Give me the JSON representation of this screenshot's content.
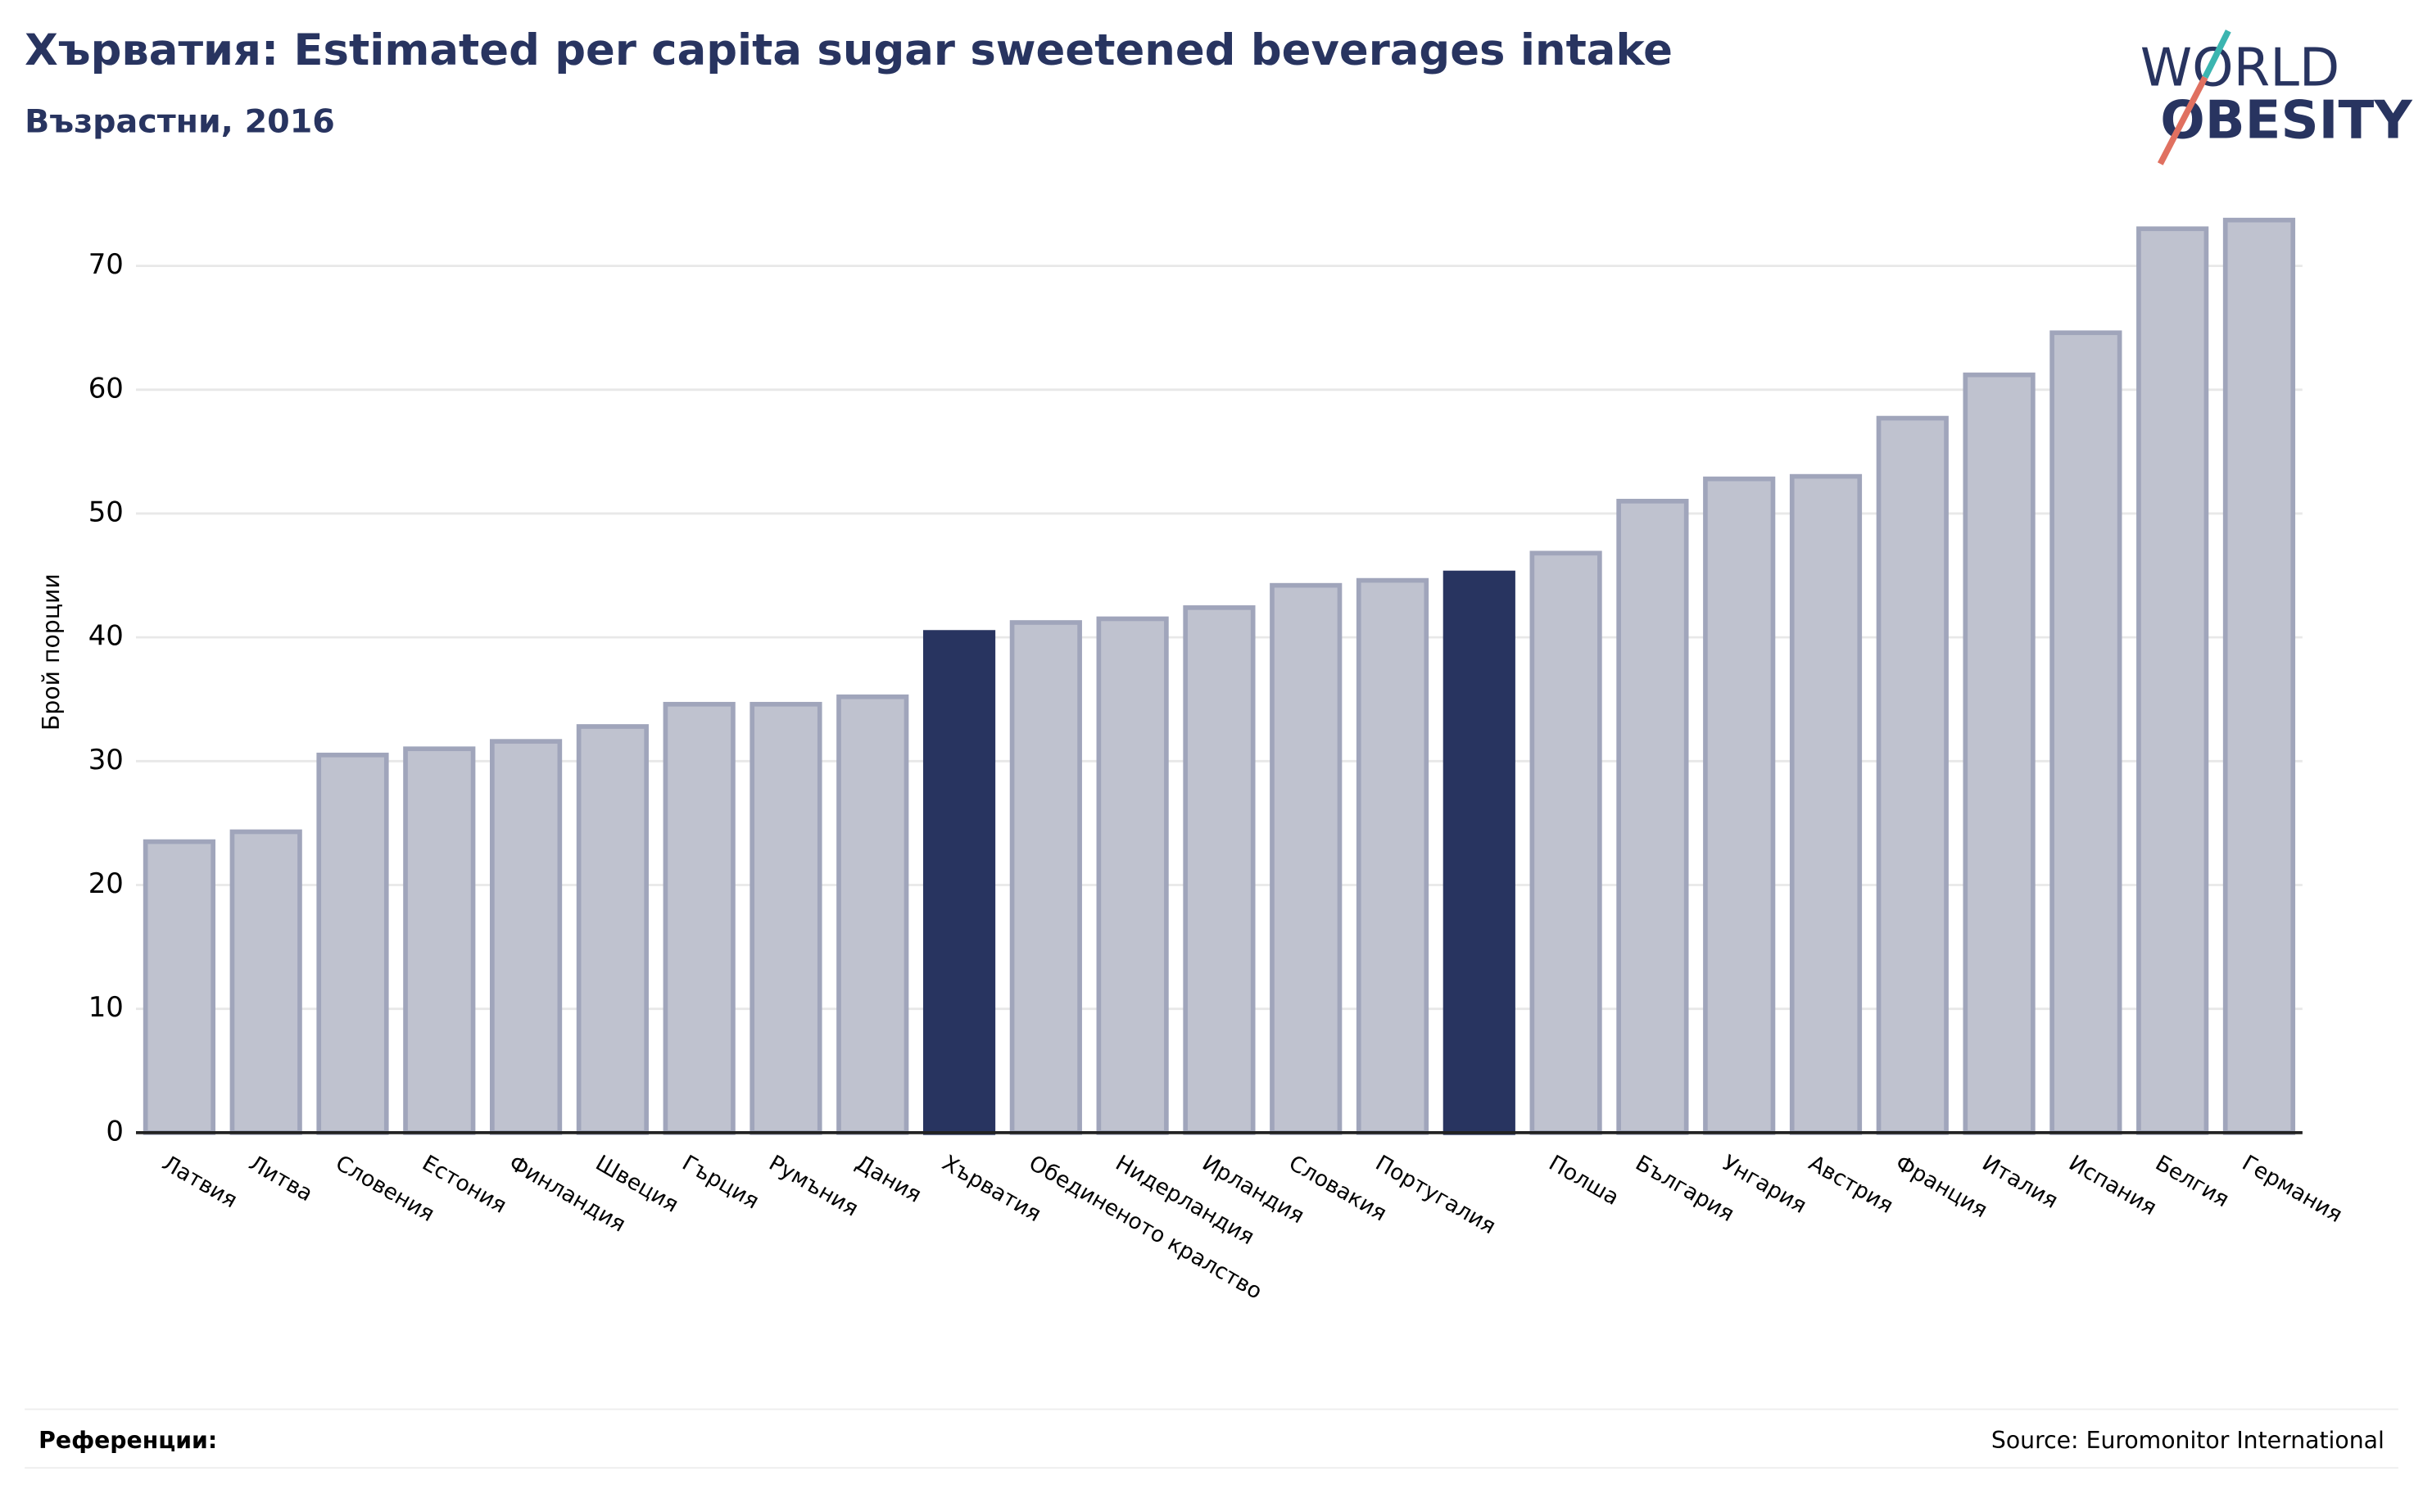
{
  "chart_data": {
    "type": "bar",
    "title": "Хърватия: Estimated per capita sugar sweetened beverages intake",
    "subtitle": "Възрастни, 2016",
    "y_label": "Брой порции",
    "categories": [
      "Латвия",
      "Литва",
      "Словения",
      "Естония",
      "Финландия",
      "Швеция",
      "Гърция",
      "Румъния",
      "Дания",
      "Хърватия",
      "Обединеното кралство",
      "Нидерландия",
      "Ирландия",
      "Словакия",
      "Португалия",
      null,
      "Полша",
      "България",
      "Унгария",
      "Австрия",
      "Франция",
      "Италия",
      "Испания",
      "Белгия",
      "Германия"
    ],
    "values": [
      23.5,
      24.3,
      30.5,
      31.0,
      31.6,
      32.8,
      34.6,
      34.6,
      35.2,
      40.4,
      41.2,
      41.5,
      42.4,
      44.2,
      44.6,
      45.2,
      46.8,
      51.0,
      52.8,
      53.0,
      57.7,
      61.2,
      64.6,
      73.0,
      73.7
    ],
    "color": "#bfc2cf",
    "highlight_color": "#283460",
    "highlight": [
      9,
      15
    ],
    "ylim": [
      0,
      74
    ],
    "yticks": [
      0,
      10,
      20,
      30,
      40,
      50,
      60,
      70
    ],
    "grid": true,
    "references_label": "Референции:",
    "source": "Source: Euromonitor International",
    "logo": [
      "WORLD",
      "OBESITY"
    ]
  }
}
